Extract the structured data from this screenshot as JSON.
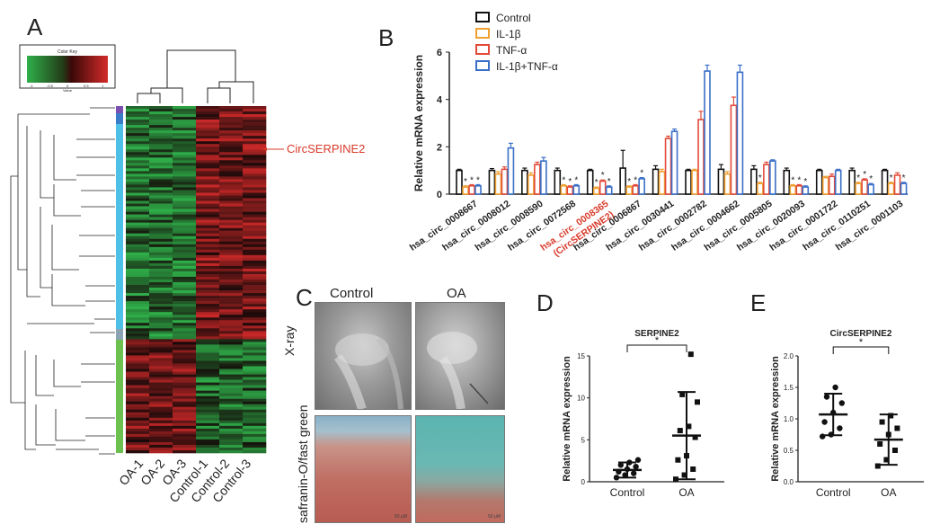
{
  "panels": {
    "A": {
      "letter": "A",
      "color_key_title": "Color Key",
      "color_key_axis": "Value",
      "color_key_ticks": [
        "-1",
        "-0.5",
        "0",
        "0.5",
        "1"
      ],
      "annotation": "CircSERPINE2",
      "samples": [
        "OA-1",
        "OA-2",
        "OA-3",
        "Control-1",
        "Control-2",
        "Control-3"
      ],
      "colors": {
        "low": "#2fb04a",
        "mid": "#140606",
        "high": "#d42a2a",
        "annotation": "#d83a2a"
      }
    },
    "B": {
      "letter": "B"
    },
    "C": {
      "letter": "C",
      "col_labels": [
        "Control",
        "OA"
      ],
      "row_labels": [
        "X-ray",
        "safranin-O/fast green"
      ],
      "scale_bar": "50 μM"
    },
    "D": {
      "letter": "D"
    },
    "E": {
      "letter": "E"
    }
  },
  "chart_data": [
    {
      "id": "B",
      "type": "bar",
      "ylabel": "Relative mRNA expression",
      "ylim": [
        0,
        6
      ],
      "yticks": [
        "0",
        "2",
        "4",
        "6"
      ],
      "legend_position": "top",
      "categories": [
        "hsa_circ_0008667",
        "hsa_circ_0008012",
        "hsa_circ_0008590",
        "hsa_circ_0072568",
        "hsa_circ_0008365",
        "hsa_circ_0006867",
        "hsa_circ_0030441",
        "hsa_circ_0002782",
        "hsa_circ_0004662",
        "hsa_circ_0005805",
        "hsa_circ_0020093",
        "hsa_circ_0001722",
        "hsa_circ_0110251",
        "hsa_circ_0001103"
      ],
      "highlight_index": 4,
      "highlight_sublabel": "(CircSERPINE2)",
      "highlight_color": "#d83a2a",
      "series": [
        {
          "name": "Control",
          "color": "#111111",
          "values": [
            1.0,
            1.0,
            1.0,
            1.0,
            1.0,
            1.1,
            1.05,
            1.0,
            1.05,
            1.05,
            1.0,
            1.0,
            1.0,
            1.0
          ],
          "errors": [
            0.05,
            0.08,
            0.1,
            0.1,
            0.05,
            0.75,
            0.15,
            0.05,
            0.2,
            0.15,
            0.1,
            0.05,
            0.1,
            0.05
          ]
        },
        {
          "name": "IL-1β",
          "color": "#f0a030",
          "values": [
            0.3,
            0.85,
            0.8,
            0.35,
            0.25,
            0.3,
            0.95,
            1.0,
            0.85,
            0.45,
            0.35,
            0.7,
            0.45,
            0.45
          ],
          "errors": [
            0.05,
            0.1,
            0.1,
            0.05,
            0.05,
            0.05,
            0.1,
            0.05,
            0.1,
            0.05,
            0.05,
            0.05,
            0.05,
            0.05
          ]
        },
        {
          "name": "TNF-α",
          "color": "#e24a3a",
          "values": [
            0.35,
            1.05,
            1.25,
            0.3,
            0.55,
            0.35,
            2.35,
            3.15,
            3.75,
            1.25,
            0.35,
            0.75,
            0.6,
            0.8
          ],
          "errors": [
            0.05,
            0.1,
            0.1,
            0.05,
            0.05,
            0.05,
            0.1,
            0.35,
            0.35,
            0.1,
            0.05,
            0.1,
            0.05,
            0.1
          ]
        },
        {
          "name": "IL-1β+TNF-α",
          "color": "#3a6fc8",
          "values": [
            0.35,
            1.95,
            1.4,
            0.35,
            0.3,
            0.65,
            2.65,
            5.2,
            5.15,
            1.4,
            0.3,
            1.0,
            0.4,
            0.45
          ],
          "errors": [
            0.05,
            0.2,
            0.15,
            0.05,
            0.05,
            0.05,
            0.1,
            0.25,
            0.3,
            0.05,
            0.05,
            0.05,
            0.05,
            0.05
          ]
        }
      ],
      "significance_marker": "*"
    },
    {
      "id": "D",
      "type": "scatter",
      "title": "SERPINE2",
      "ylabel": "Relative mRNA expression",
      "ylim": [
        0,
        15
      ],
      "yticks": [
        "0",
        "5",
        "10",
        "15"
      ],
      "groups": [
        "Control",
        "OA"
      ],
      "points": [
        [
          0.5,
          0.8,
          1.0,
          1.2,
          1.5,
          1.8,
          2.0,
          2.3,
          2.6
        ],
        [
          0.3,
          0.8,
          1.5,
          2.6,
          3.1,
          5.3,
          6.1,
          6.6,
          9.5,
          10.4,
          15.2
        ]
      ],
      "means": [
        1.4,
        5.5
      ],
      "sds": [
        0.9,
        5.2
      ],
      "significance": "*"
    },
    {
      "id": "E",
      "type": "scatter",
      "title": "CircSERPINE2",
      "ylabel": "Relative mRNA expression",
      "ylim": [
        0,
        2
      ],
      "yticks": [
        "0.0",
        "0.5",
        "1.0",
        "1.5",
        "2.0"
      ],
      "groups": [
        "Control",
        "OA"
      ],
      "points": [
        [
          0.72,
          0.75,
          0.85,
          0.95,
          1.1,
          1.25,
          1.35,
          1.5
        ],
        [
          0.25,
          0.35,
          0.5,
          0.6,
          0.75,
          0.85,
          0.95,
          1.05
        ]
      ],
      "means": [
        1.07,
        0.67
      ],
      "sds": [
        0.33,
        0.4
      ],
      "significance": "*"
    }
  ]
}
